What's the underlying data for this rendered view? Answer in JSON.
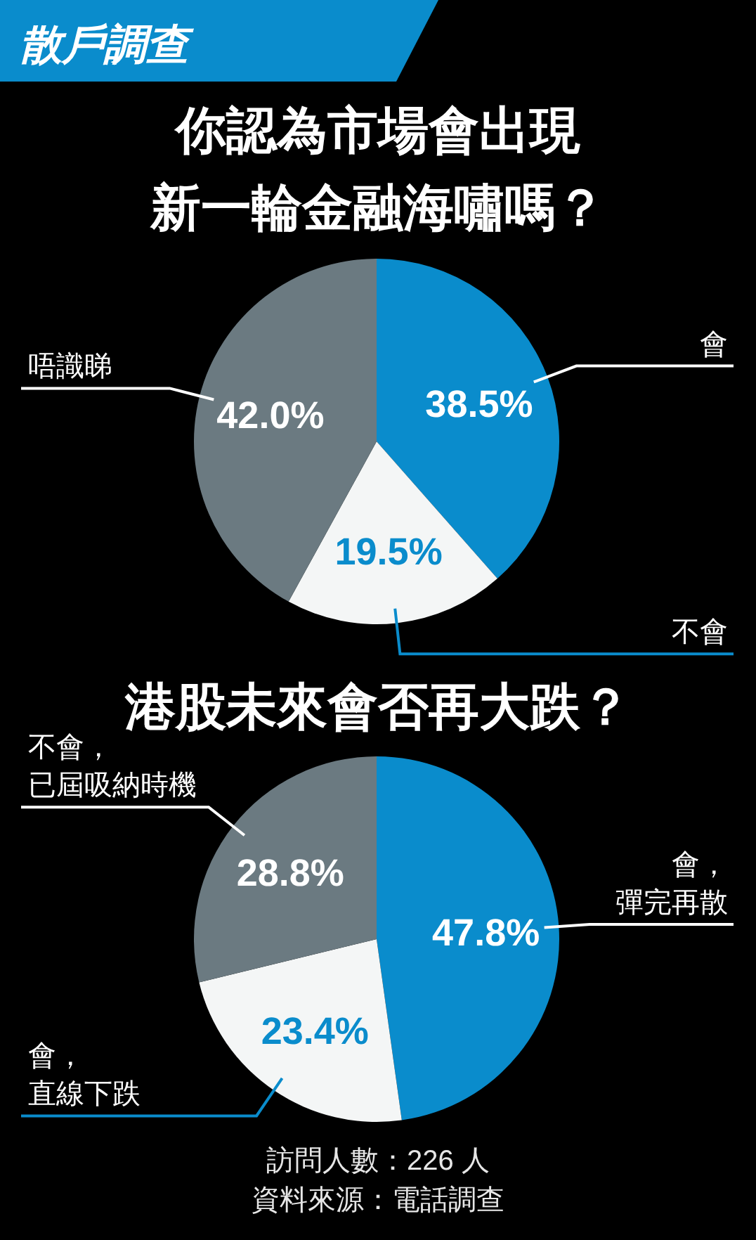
{
  "chart_data": [
    {
      "type": "pie",
      "title": "你認為市場會出現新一輪金融海嘯嗎？",
      "annotations": [
        "散戶調查"
      ],
      "categories": [
        "會",
        "不會",
        "唔識睇"
      ],
      "values": [
        38.5,
        19.5,
        42.0
      ],
      "value_labels": [
        "38.5%",
        "19.5%",
        "42.0%"
      ],
      "colors": [
        "#0a8ccc",
        "#f4f6f6",
        "#6b7a81"
      ]
    },
    {
      "type": "pie",
      "title": "港股未來會否再大跌？",
      "annotations": [
        "訪問人數：226 人",
        "資料來源：電話調查"
      ],
      "categories": [
        "會，彈完再散",
        "會，直線下跌",
        "不會，已屆吸納時機"
      ],
      "values": [
        47.8,
        23.4,
        28.8
      ],
      "value_labels": [
        "47.8%",
        "23.4%",
        "28.8%"
      ],
      "colors": [
        "#0a8ccc",
        "#f4f6f6",
        "#6b7a81"
      ]
    }
  ]
}
